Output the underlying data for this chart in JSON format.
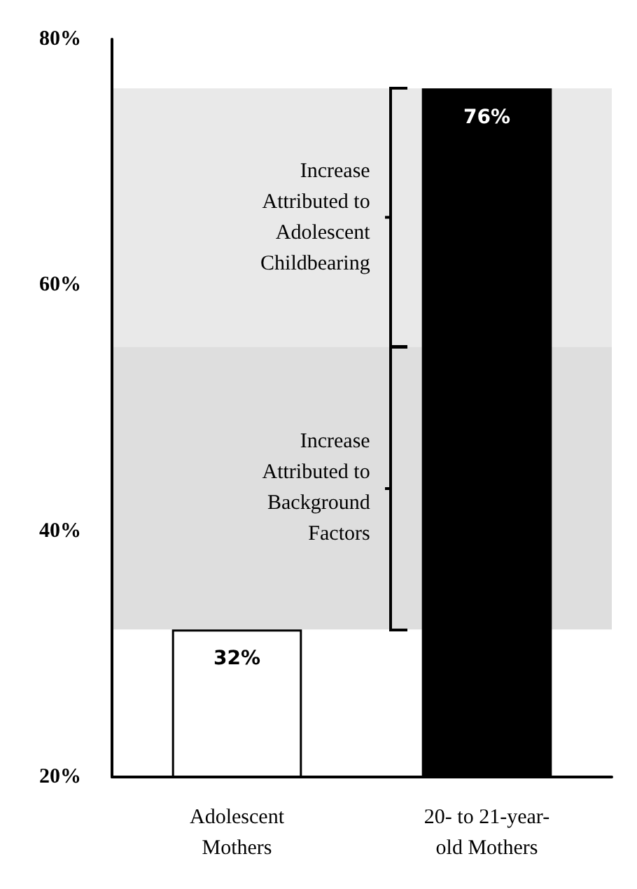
{
  "chart_data": {
    "type": "bar",
    "categories": [
      "Adolescent\nMothers",
      "20- to 21-year-\nold Mothers"
    ],
    "values": [
      32,
      76
    ],
    "colors": [
      "#ffffff",
      "#000000"
    ],
    "value_labels": [
      "32%",
      "76%"
    ],
    "ylim": [
      20,
      80
    ],
    "yticks": [
      {
        "value": 20,
        "label": "20%"
      },
      {
        "value": 40,
        "label": "40%"
      },
      {
        "value": 60,
        "label": "60%"
      },
      {
        "value": 80,
        "label": "80%"
      }
    ],
    "grid": false,
    "bands": [
      {
        "axis": "y",
        "from": 32,
        "to": 55,
        "color": "#dedede",
        "label": "Increase\nAttributed to\nBackground\nFactors"
      },
      {
        "axis": "y",
        "from": 55,
        "to": 76,
        "color": "#e9e9e9",
        "label": "Increase\nAttributed to\nAdolescent\nChildbearing"
      }
    ]
  }
}
